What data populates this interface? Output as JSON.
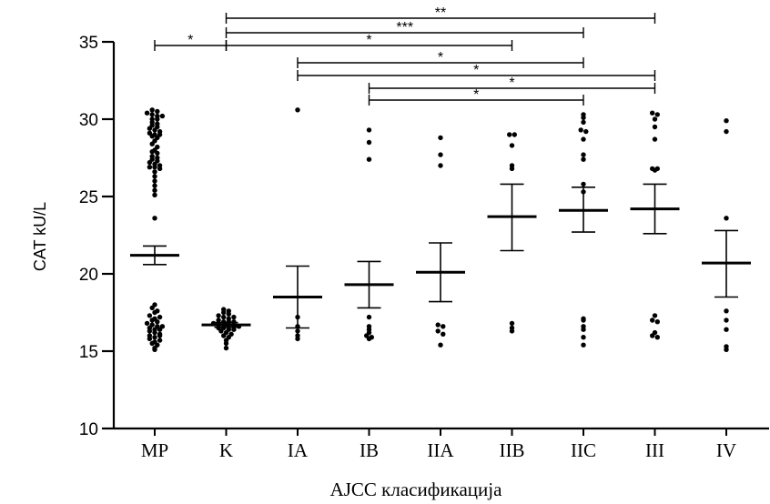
{
  "chart_data": {
    "type": "scatter",
    "subtype": "dot-plot-with-mean-sem",
    "xlabel": "AJCC класификација",
    "ylabel": "CAT kU/L",
    "ylim": [
      10,
      35
    ],
    "yticks": [
      10,
      15,
      20,
      25,
      30,
      35
    ],
    "grid": false,
    "categories": [
      "MP",
      "K",
      "IA",
      "IB",
      "IIA",
      "IIB",
      "IIC",
      "III",
      "IV"
    ],
    "groups": [
      {
        "category": "MP",
        "mean": 21.2,
        "sem_low": 20.6,
        "sem_high": 21.8,
        "points": [
          30.6,
          30.5,
          30.4,
          30.3,
          30.2,
          30.2,
          30.0,
          30.0,
          29.8,
          29.7,
          29.6,
          29.5,
          29.4,
          29.3,
          29.2,
          29.1,
          29.0,
          29.0,
          28.9,
          28.8,
          28.6,
          28.4,
          28.2,
          28.0,
          27.9,
          27.8,
          27.6,
          27.5,
          27.4,
          27.3,
          27.2,
          27.1,
          27.0,
          26.9,
          26.9,
          26.8,
          26.6,
          26.3,
          26.0,
          25.7,
          25.4,
          25.1,
          23.6,
          18.0,
          17.8,
          17.6,
          17.5,
          17.3,
          17.1,
          17.0,
          16.9,
          16.8,
          16.7,
          16.6,
          16.5,
          16.4,
          16.3,
          16.2,
          16.1,
          16.0,
          15.9,
          15.8,
          15.6,
          15.5,
          15.4,
          15.2,
          15.1,
          16.6,
          16.4,
          17.2,
          16.0,
          15.7
        ]
      },
      {
        "category": "K",
        "mean": 16.7,
        "sem_low": 16.55,
        "sem_high": 16.85,
        "points": [
          17.7,
          17.6,
          17.5,
          17.4,
          17.3,
          17.2,
          17.1,
          17.0,
          16.9,
          16.9,
          16.8,
          16.8,
          16.7,
          16.7,
          16.6,
          16.6,
          16.5,
          16.5,
          16.4,
          16.3,
          16.2,
          16.1,
          16.0,
          15.9,
          15.7,
          15.5,
          15.2,
          17.2,
          16.9,
          16.4
        ]
      },
      {
        "category": "IA",
        "mean": 18.5,
        "sem_low": 16.5,
        "sem_high": 20.5,
        "points": [
          30.6,
          17.2,
          16.6,
          16.3,
          16.0,
          15.8
        ]
      },
      {
        "category": "IB",
        "mean": 19.3,
        "sem_low": 17.8,
        "sem_high": 20.8,
        "points": [
          29.3,
          28.5,
          27.4,
          17.2,
          16.6,
          16.4,
          16.2,
          16.0,
          15.9,
          15.8
        ]
      },
      {
        "category": "IIA",
        "mean": 20.1,
        "sem_low": 18.2,
        "sem_high": 22.0,
        "points": [
          28.8,
          27.7,
          27.0,
          16.7,
          16.6,
          16.3,
          16.1,
          15.4
        ]
      },
      {
        "category": "IIB",
        "mean": 23.7,
        "sem_low": 21.5,
        "sem_high": 25.8,
        "points": [
          29.0,
          29.0,
          28.3,
          27.0,
          26.8,
          16.8,
          16.5,
          16.3
        ]
      },
      {
        "category": "IIC",
        "mean": 24.1,
        "sem_low": 22.7,
        "sem_high": 25.6,
        "points": [
          30.3,
          30.1,
          29.8,
          29.3,
          29.2,
          28.7,
          27.7,
          27.4,
          25.8,
          25.3,
          17.1,
          17.0,
          16.6,
          16.4,
          15.9,
          15.4
        ]
      },
      {
        "category": "III",
        "mean": 24.2,
        "sem_low": 22.6,
        "sem_high": 25.8,
        "points": [
          30.4,
          30.3,
          30.0,
          29.5,
          28.7,
          26.8,
          26.8,
          26.7,
          17.3,
          17.0,
          16.9,
          16.2,
          16.0,
          15.9
        ]
      },
      {
        "category": "IV",
        "mean": 20.7,
        "sem_low": 18.5,
        "sem_high": 22.8,
        "points": [
          29.9,
          29.2,
          23.6,
          17.6,
          17.0,
          16.4,
          15.3,
          15.1
        ]
      }
    ],
    "significance": [
      {
        "from": "K",
        "to": "III",
        "label": "**"
      },
      {
        "from": "K",
        "to": "IIC",
        "label": "***"
      },
      {
        "from": "MP",
        "to": "K",
        "label": "*"
      },
      {
        "from": "K",
        "to": "IIB",
        "label": "*"
      },
      {
        "from": "IA",
        "to": "IIC",
        "label": "*"
      },
      {
        "from": "IA",
        "to": "III",
        "label": "*"
      },
      {
        "from": "IB",
        "to": "III",
        "label": "*"
      },
      {
        "from": "IB",
        "to": "IIC",
        "label": "*"
      }
    ]
  }
}
